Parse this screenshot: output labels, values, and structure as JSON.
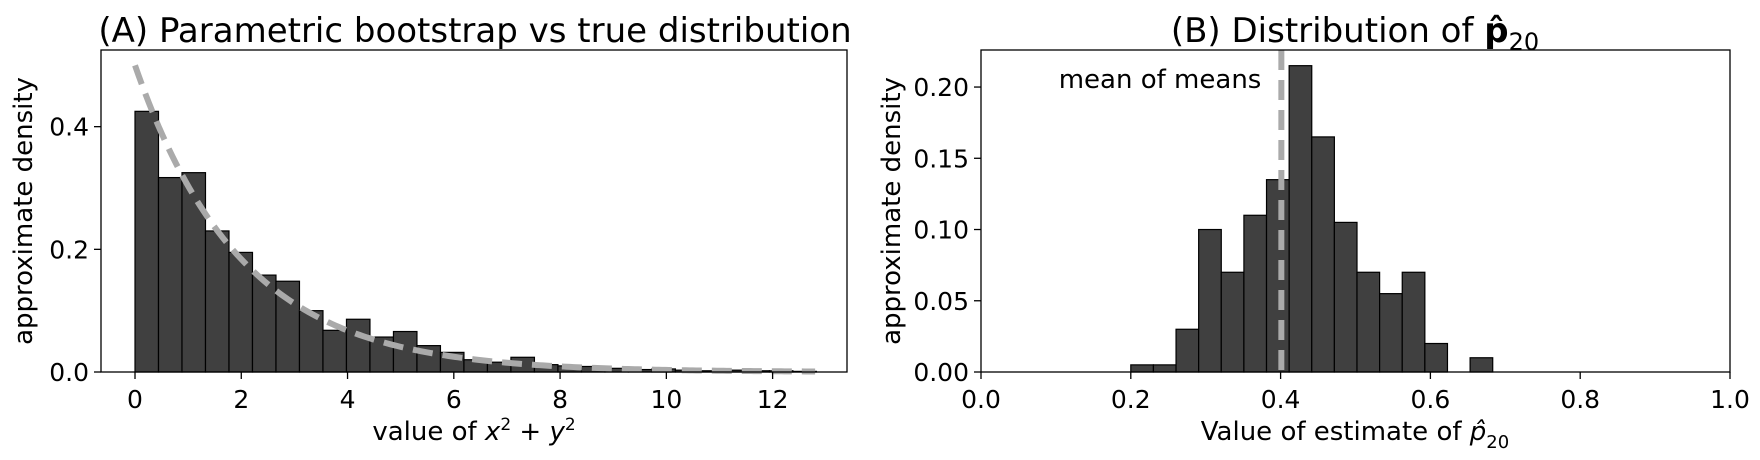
{
  "chart_data": [
    {
      "type": "bar",
      "title": "(A) Parametric bootstrap vs true distribution",
      "xlabel": "value of x² + y²",
      "ylabel": "approximate density",
      "xlim": [
        -0.64,
        13.4
      ],
      "ylim": [
        0,
        0.525
      ],
      "xticks": [
        0,
        2,
        4,
        6,
        8,
        10,
        12
      ],
      "xtick_labels": [
        "0",
        "2",
        "4",
        "6",
        "8",
        "10",
        "12"
      ],
      "yticks": [
        0.0,
        0.2,
        0.4
      ],
      "ytick_labels": [
        "0.0",
        "0.2",
        "0.4"
      ],
      "bin_width": 0.4422,
      "bins_start": 0,
      "values": [
        0.425,
        0.317,
        0.325,
        0.23,
        0.195,
        0.158,
        0.148,
        0.1,
        0.068,
        0.086,
        0.057,
        0.066,
        0.043,
        0.032,
        0.02,
        0.016,
        0.024,
        0.012,
        0.01,
        0.009,
        0.006,
        0.004,
        0.005,
        0.003,
        0.002,
        0.003,
        0.002,
        0.002,
        0.001
      ],
      "reference_curve": {
        "style": "dashed",
        "color": "#aaaaaa",
        "rate": 0.5
      },
      "grid": false,
      "bar_color": "#404040"
    },
    {
      "type": "bar",
      "title": "(B) Distribution of p̂₂₀",
      "xlabel": "Value of estimate of p̂₂₀",
      "ylabel": "approximate density",
      "xlim": [
        0.0,
        1.0
      ],
      "ylim": [
        0,
        0.226
      ],
      "xticks": [
        0.0,
        0.2,
        0.4,
        0.6,
        0.8,
        1.0
      ],
      "xtick_labels": [
        "0.0",
        "0.2",
        "0.4",
        "0.6",
        "0.8",
        "1.0"
      ],
      "yticks": [
        0.0,
        0.05,
        0.1,
        0.15,
        0.2
      ],
      "ytick_labels": [
        "0.00",
        "0.05",
        "0.10",
        "0.15",
        "0.20"
      ],
      "bin_width": 0.0302,
      "bins_start": 0.2,
      "values": [
        0.005,
        0.005,
        0.03,
        0.1,
        0.07,
        0.11,
        0.135,
        0.215,
        0.165,
        0.105,
        0.07,
        0.055,
        0.07,
        0.02,
        0.0,
        0.01
      ],
      "mean_line": {
        "x": 0.401,
        "label": "mean of means",
        "color": "#aaaaaa"
      },
      "grid": false,
      "bar_color": "#404040"
    }
  ]
}
